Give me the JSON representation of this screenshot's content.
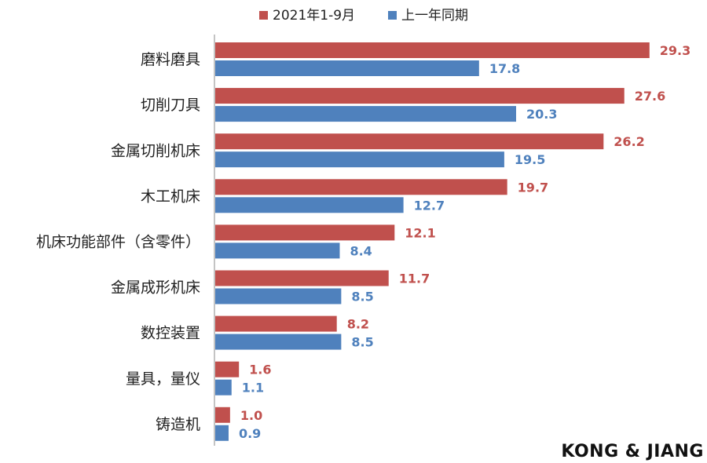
{
  "chart_data": {
    "type": "bar",
    "orientation": "horizontal",
    "categories": [
      "磨料磨具",
      "切削刀具",
      "金属切削机床",
      "木工机床",
      "机床功能部件（含零件）",
      "金属成形机床",
      "数控装置",
      "量具，量仪",
      "铸造机"
    ],
    "series": [
      {
        "name": "2021年1-9月",
        "color": "#c0504d",
        "values": [
          29.3,
          27.6,
          26.2,
          19.7,
          12.1,
          11.7,
          8.2,
          1.6,
          1.0
        ]
      },
      {
        "name": "上一年同期",
        "color": "#4f81bd",
        "values": [
          17.8,
          20.3,
          19.5,
          12.7,
          8.4,
          8.5,
          8.5,
          1.1,
          0.9
        ]
      }
    ],
    "value_labels": [
      [
        "29.3",
        "27.6",
        "26.2",
        "19.7",
        "12.1",
        "11.7",
        "8.2",
        "1.6",
        "1.0"
      ],
      [
        "17.8",
        "20.3",
        "19.5",
        "12.7",
        "8.4",
        "8.5",
        "8.5",
        "1.1",
        "0.9"
      ]
    ],
    "xlim": [
      0,
      30
    ],
    "legend_position": "top",
    "grid": false
  },
  "watermark": "KONG & JIANG"
}
